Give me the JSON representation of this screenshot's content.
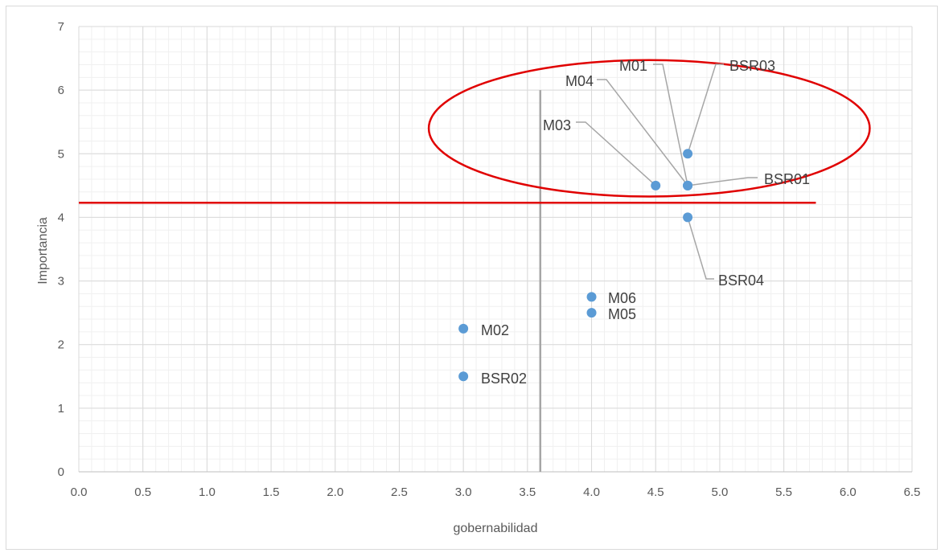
{
  "chart_data": {
    "type": "scatter",
    "title": "",
    "xlabel": "gobernabilidad",
    "ylabel": "Importancia",
    "xlim": [
      0,
      6.5
    ],
    "ylim": [
      0,
      7
    ],
    "x_major_step": 0.5,
    "x_minor_step": 0.1,
    "y_major_step": 1,
    "y_minor_step": 0.2,
    "x_tick_labels": [
      "0.0",
      "0.5",
      "1.0",
      "1.5",
      "2.0",
      "2.5",
      "3.0",
      "3.5",
      "4.0",
      "4.5",
      "5.0",
      "5.5",
      "6.0",
      "6.5"
    ],
    "y_tick_labels": [
      "0",
      "1",
      "2",
      "3",
      "4",
      "5",
      "6",
      "7"
    ],
    "grid": true,
    "legend": false,
    "marker_color": "#5b9bd5",
    "points": [
      {
        "label": "M01",
        "x": 4.75,
        "y": 4.5
      },
      {
        "label": "M04",
        "x": 4.75,
        "y": 4.5
      },
      {
        "label": "BSR01",
        "x": 4.75,
        "y": 4.5
      },
      {
        "label": "BSR03",
        "x": 4.75,
        "y": 5.0
      },
      {
        "label": "M03",
        "x": 4.5,
        "y": 4.5
      },
      {
        "label": "BSR04",
        "x": 4.75,
        "y": 4.0
      },
      {
        "label": "M06",
        "x": 4.0,
        "y": 2.75
      },
      {
        "label": "M05",
        "x": 4.0,
        "y": 2.5
      },
      {
        "label": "M02",
        "x": 3.0,
        "y": 2.25
      },
      {
        "label": "BSR02",
        "x": 3.0,
        "y": 1.5
      }
    ],
    "annotations": {
      "vertical_line": {
        "x": 3.6,
        "y_from": 0,
        "y_to": 6,
        "color": "#a6a6a6"
      },
      "horizontal_line": {
        "y": 4.23,
        "x_from": 0,
        "x_to": 5.75,
        "color": "#e00000"
      },
      "ellipse": {
        "cx": 4.45,
        "cy": 5.4,
        "rx": 1.72,
        "ry": 1.95,
        "color": "#e00000"
      }
    }
  }
}
